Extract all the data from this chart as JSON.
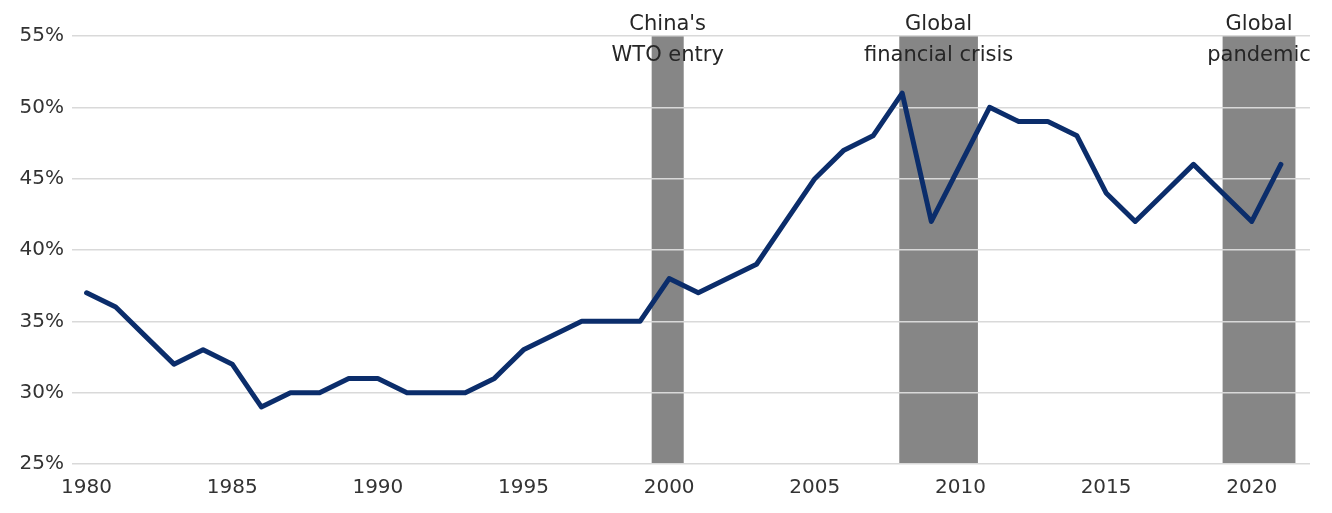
{
  "chart_data": {
    "type": "line",
    "x": [
      1980,
      1981,
      1982,
      1983,
      1984,
      1985,
      1986,
      1987,
      1988,
      1989,
      1990,
      1991,
      1992,
      1993,
      1994,
      1995,
      1996,
      1997,
      1998,
      1999,
      2000,
      2001,
      2002,
      2003,
      2004,
      2005,
      2006,
      2007,
      2008,
      2009,
      2010,
      2011,
      2012,
      2013,
      2014,
      2015,
      2016,
      2017,
      2018,
      2019,
      2020,
      2021
    ],
    "series": [
      {
        "color": "#0b2d6b",
        "values": [
          37,
          36,
          34,
          32,
          33,
          32,
          29,
          30,
          30,
          31,
          31,
          30,
          30,
          30,
          31,
          33,
          34,
          35,
          35,
          35,
          38,
          37,
          38,
          39,
          42,
          45,
          47,
          48,
          51,
          42,
          46,
          50,
          49,
          49,
          48,
          44,
          42,
          44,
          46,
          44,
          42,
          46
        ]
      }
    ],
    "xlim": [
      1979.5,
      2022
    ],
    "xticks": [
      1980,
      1985,
      1990,
      1995,
      2000,
      2005,
      2010,
      2015,
      2020
    ],
    "ylim": [
      25,
      55
    ],
    "yticks": [
      {
        "value": 25,
        "label": "25%"
      },
      {
        "value": 30,
        "label": "30%"
      },
      {
        "value": 35,
        "label": "35%"
      },
      {
        "value": 40,
        "label": "40%"
      },
      {
        "value": 45,
        "label": "45%"
      },
      {
        "value": 50,
        "label": "50%"
      },
      {
        "value": 55,
        "label": "55%"
      }
    ],
    "bands": [
      {
        "axis": "x",
        "from": 1999.4,
        "to": 2000.5,
        "label": "China's WTO entry",
        "color": "#868686"
      },
      {
        "axis": "x",
        "from": 2007.9,
        "to": 2010.6,
        "label": "Global financial crisis",
        "color": "#868686"
      },
      {
        "axis": "x",
        "from": 2019.0,
        "to": 2021.5,
        "label": "Global pandemic",
        "color": "#868686"
      }
    ],
    "grid": "y",
    "legend": false,
    "marker": "none",
    "line_style": "solid"
  }
}
